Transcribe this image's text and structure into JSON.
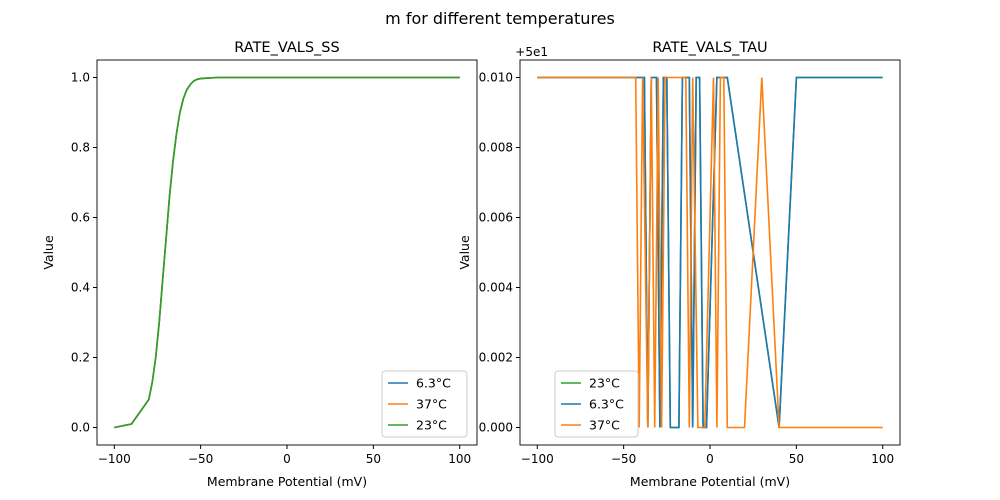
{
  "suptitle": "m for different temperatures",
  "colors": {
    "6.3°C": "#1f77b4",
    "37°C": "#ff7f0e",
    "23°C": "#2ca02c"
  },
  "chart_data": [
    {
      "type": "line",
      "title": "RATE_VALS_SS",
      "xlabel": "Membrane Potential (mV)",
      "ylabel": "Value",
      "xlim": [
        -110,
        110
      ],
      "ylim": [
        -0.05,
        1.05
      ],
      "xticks": [
        -100,
        -50,
        0,
        50,
        100
      ],
      "xtick_labels": [
        "−100",
        "−50",
        "0",
        "50",
        "100"
      ],
      "yticks": [
        0,
        0.2,
        0.4,
        0.6,
        0.8,
        1.0
      ],
      "ytick_labels": [
        "0.0",
        "0.2",
        "0.4",
        "0.6",
        "0.8",
        "1.0"
      ],
      "legend_position": "lower-right",
      "legend": [
        "6.3°C",
        "37°C",
        "23°C"
      ],
      "series": [
        {
          "name": "6.3°C",
          "x": [
            -100,
            -90,
            -80,
            -78,
            -76,
            -74,
            -72,
            -70,
            -68,
            -66,
            -64,
            -62,
            -60,
            -58,
            -56,
            -54,
            -52,
            -50,
            -45,
            -40,
            0,
            100
          ],
          "y": [
            0,
            0.01,
            0.08,
            0.13,
            0.2,
            0.3,
            0.42,
            0.54,
            0.66,
            0.76,
            0.84,
            0.9,
            0.94,
            0.965,
            0.98,
            0.99,
            0.995,
            0.997,
            0.999,
            1,
            1,
            1
          ]
        },
        {
          "name": "37°C",
          "x": [
            -100,
            -90,
            -80,
            -78,
            -76,
            -74,
            -72,
            -70,
            -68,
            -66,
            -64,
            -62,
            -60,
            -58,
            -56,
            -54,
            -52,
            -50,
            -45,
            -40,
            0,
            100
          ],
          "y": [
            0,
            0.01,
            0.08,
            0.13,
            0.2,
            0.3,
            0.42,
            0.54,
            0.66,
            0.76,
            0.84,
            0.9,
            0.94,
            0.965,
            0.98,
            0.99,
            0.995,
            0.997,
            0.999,
            1,
            1,
            1
          ]
        },
        {
          "name": "23°C",
          "x": [
            -100,
            -90,
            -80,
            -78,
            -76,
            -74,
            -72,
            -70,
            -68,
            -66,
            -64,
            -62,
            -60,
            -58,
            -56,
            -54,
            -52,
            -50,
            -45,
            -40,
            0,
            100
          ],
          "y": [
            0,
            0.01,
            0.08,
            0.13,
            0.2,
            0.3,
            0.42,
            0.54,
            0.66,
            0.76,
            0.84,
            0.9,
            0.94,
            0.965,
            0.98,
            0.99,
            0.995,
            0.997,
            0.999,
            1,
            1,
            1
          ]
        }
      ]
    },
    {
      "type": "line",
      "title": "RATE_VALS_TAU",
      "xlabel": "Membrane Potential (mV)",
      "ylabel": "Value",
      "offset_label": "+5e1",
      "xlim": [
        -110,
        110
      ],
      "ylim": [
        -0.0005,
        0.0105
      ],
      "xticks": [
        -100,
        -50,
        0,
        50,
        100
      ],
      "xtick_labels": [
        "−100",
        "−50",
        "0",
        "50",
        "100"
      ],
      "yticks": [
        0,
        0.002,
        0.004,
        0.006,
        0.008,
        0.01
      ],
      "ytick_labels": [
        "0.000",
        "0.002",
        "0.004",
        "0.006",
        "0.008",
        "0.010"
      ],
      "legend_position": "lower-left",
      "legend": [
        "23°C",
        "6.3°C",
        "37°C"
      ],
      "series": [
        {
          "name": "23°C",
          "x": [
            -100,
            -38,
            -36,
            -34,
            -31,
            -29,
            -27,
            -25,
            -23,
            -18,
            -16,
            -12,
            -10,
            -8,
            -6,
            -4,
            -2,
            4,
            10,
            40,
            50,
            100
          ],
          "y": [
            0.01,
            0.01,
            0,
            0.01,
            0.01,
            0,
            0.01,
            0.01,
            0,
            0,
            0.01,
            0.01,
            0,
            0.01,
            0.01,
            0,
            0,
            0.01,
            0.01,
            0,
            0.01,
            0.01
          ]
        },
        {
          "name": "6.3°C",
          "x": [
            -100,
            -38,
            -36,
            -34,
            -31,
            -29,
            -27,
            -25,
            -23,
            -18,
            -16,
            -12,
            -10,
            -8,
            -6,
            -4,
            -2,
            4,
            10,
            40,
            50,
            100
          ],
          "y": [
            0.01,
            0.01,
            0,
            0.01,
            0.01,
            0,
            0.01,
            0.01,
            0,
            0,
            0.01,
            0.01,
            0,
            0.01,
            0.01,
            0,
            0,
            0.01,
            0.01,
            0,
            0.01,
            0.01
          ]
        },
        {
          "name": "37°C",
          "x": [
            -100,
            -43,
            -41,
            -39,
            -36,
            -34,
            -32,
            -30,
            -28,
            -26,
            -24,
            -14,
            -12,
            -10,
            -7,
            -3,
            2,
            4,
            6,
            8,
            10,
            20,
            30,
            40,
            100
          ],
          "y": [
            0.01,
            0.01,
            0,
            0.01,
            0,
            0.01,
            0,
            0.01,
            0,
            0.01,
            0.01,
            0.01,
            0,
            0.01,
            0,
            0,
            0.01,
            0,
            0.01,
            0.01,
            0,
            0,
            0.01,
            0,
            0
          ]
        }
      ]
    }
  ]
}
